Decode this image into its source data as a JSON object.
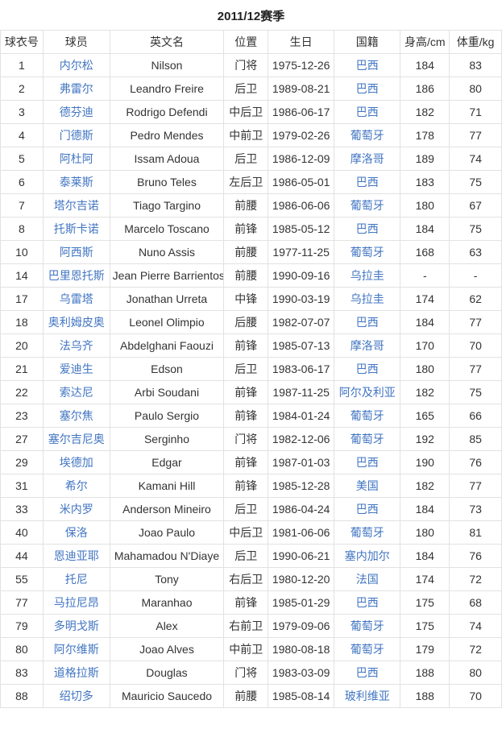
{
  "title": "2011/12赛季",
  "colors": {
    "link": "#4175c2",
    "border": "#e2e2e2",
    "text": "#333333"
  },
  "table": {
    "headers": [
      "球衣号",
      "球员",
      "英文名",
      "位置",
      "生日",
      "国籍",
      "身高/cm",
      "体重/kg"
    ],
    "rows": [
      {
        "number": "1",
        "player": "内尔松",
        "en_name": "Nilson",
        "position": "门将",
        "birthday": "1975-12-26",
        "nationality": "巴西",
        "height": "184",
        "weight": "83"
      },
      {
        "number": "2",
        "player": "弗雷尔",
        "en_name": "Leandro Freire",
        "position": "后卫",
        "birthday": "1989-08-21",
        "nationality": "巴西",
        "height": "186",
        "weight": "80"
      },
      {
        "number": "3",
        "player": "德芬迪",
        "en_name": "Rodrigo Defendi",
        "position": "中后卫",
        "birthday": "1986-06-17",
        "nationality": "巴西",
        "height": "182",
        "weight": "71"
      },
      {
        "number": "4",
        "player": "门德斯",
        "en_name": "Pedro Mendes",
        "position": "中前卫",
        "birthday": "1979-02-26",
        "nationality": "葡萄牙",
        "height": "178",
        "weight": "77"
      },
      {
        "number": "5",
        "player": "阿杜阿",
        "en_name": "Issam Adoua",
        "position": "后卫",
        "birthday": "1986-12-09",
        "nationality": "摩洛哥",
        "height": "189",
        "weight": "74"
      },
      {
        "number": "6",
        "player": "泰莱斯",
        "en_name": "Bruno Teles",
        "position": "左后卫",
        "birthday": "1986-05-01",
        "nationality": "巴西",
        "height": "183",
        "weight": "75"
      },
      {
        "number": "7",
        "player": "塔尔吉诺",
        "en_name": "Tiago Targino",
        "position": "前腰",
        "birthday": "1986-06-06",
        "nationality": "葡萄牙",
        "height": "180",
        "weight": "67"
      },
      {
        "number": "8",
        "player": "托斯卡诺",
        "en_name": "Marcelo Toscano",
        "position": "前锋",
        "birthday": "1985-05-12",
        "nationality": "巴西",
        "height": "184",
        "weight": "75"
      },
      {
        "number": "10",
        "player": "阿西斯",
        "en_name": "Nuno Assis",
        "position": "前腰",
        "birthday": "1977-11-25",
        "nationality": "葡萄牙",
        "height": "168",
        "weight": "63"
      },
      {
        "number": "14",
        "player": "巴里恩托斯",
        "en_name": "Jean Pierre Barrientos",
        "position": "前腰",
        "birthday": "1990-09-16",
        "nationality": "乌拉圭",
        "height": "-",
        "weight": "-"
      },
      {
        "number": "17",
        "player": "乌雷塔",
        "en_name": "Jonathan Urreta",
        "position": "中锋",
        "birthday": "1990-03-19",
        "nationality": "乌拉圭",
        "height": "174",
        "weight": "62"
      },
      {
        "number": "18",
        "player": "奥利姆皮奥",
        "en_name": "Leonel Olimpio",
        "position": "后腰",
        "birthday": "1982-07-07",
        "nationality": "巴西",
        "height": "184",
        "weight": "77"
      },
      {
        "number": "20",
        "player": "法乌齐",
        "en_name": "Abdelghani Faouzi",
        "position": "前锋",
        "birthday": "1985-07-13",
        "nationality": "摩洛哥",
        "height": "170",
        "weight": "70"
      },
      {
        "number": "21",
        "player": "爱迪生",
        "en_name": "Edson",
        "position": "后卫",
        "birthday": "1983-06-17",
        "nationality": "巴西",
        "height": "180",
        "weight": "77"
      },
      {
        "number": "22",
        "player": "索达尼",
        "en_name": "Arbi Soudani",
        "position": "前锋",
        "birthday": "1987-11-25",
        "nationality": "阿尔及利亚",
        "height": "182",
        "weight": "75"
      },
      {
        "number": "23",
        "player": "塞尔焦",
        "en_name": "Paulo Sergio",
        "position": "前锋",
        "birthday": "1984-01-24",
        "nationality": "葡萄牙",
        "height": "165",
        "weight": "66"
      },
      {
        "number": "27",
        "player": "塞尔吉尼奥",
        "en_name": "Serginho",
        "position": "门将",
        "birthday": "1982-12-06",
        "nationality": "葡萄牙",
        "height": "192",
        "weight": "85"
      },
      {
        "number": "29",
        "player": "埃德加",
        "en_name": "Edgar",
        "position": "前锋",
        "birthday": "1987-01-03",
        "nationality": "巴西",
        "height": "190",
        "weight": "76"
      },
      {
        "number": "31",
        "player": "希尔",
        "en_name": "Kamani Hill",
        "position": "前锋",
        "birthday": "1985-12-28",
        "nationality": "美国",
        "height": "182",
        "weight": "77"
      },
      {
        "number": "33",
        "player": "米内罗",
        "en_name": "Anderson Mineiro",
        "position": "后卫",
        "birthday": "1986-04-24",
        "nationality": "巴西",
        "height": "184",
        "weight": "73"
      },
      {
        "number": "40",
        "player": "保洛",
        "en_name": "Joao Paulo",
        "position": "中后卫",
        "birthday": "1981-06-06",
        "nationality": "葡萄牙",
        "height": "180",
        "weight": "81"
      },
      {
        "number": "44",
        "player": "恩迪亚耶",
        "en_name": "Mahamadou N'Diaye",
        "position": "后卫",
        "birthday": "1990-06-21",
        "nationality": "塞内加尔",
        "height": "184",
        "weight": "76"
      },
      {
        "number": "55",
        "player": "托尼",
        "en_name": "Tony",
        "position": "右后卫",
        "birthday": "1980-12-20",
        "nationality": "法国",
        "height": "174",
        "weight": "72"
      },
      {
        "number": "77",
        "player": "马拉尼昂",
        "en_name": "Maranhao",
        "position": "前锋",
        "birthday": "1985-01-29",
        "nationality": "巴西",
        "height": "175",
        "weight": "68"
      },
      {
        "number": "79",
        "player": "多明戈斯",
        "en_name": "Alex",
        "position": "右前卫",
        "birthday": "1979-09-06",
        "nationality": "葡萄牙",
        "height": "175",
        "weight": "74"
      },
      {
        "number": "80",
        "player": "阿尔维斯",
        "en_name": "Joao Alves",
        "position": "中前卫",
        "birthday": "1980-08-18",
        "nationality": "葡萄牙",
        "height": "179",
        "weight": "72"
      },
      {
        "number": "83",
        "player": "道格拉斯",
        "en_name": "Douglas",
        "position": "门将",
        "birthday": "1983-03-09",
        "nationality": "巴西",
        "height": "188",
        "weight": "80"
      },
      {
        "number": "88",
        "player": "绍切多",
        "en_name": "Mauricio Saucedo",
        "position": "前腰",
        "birthday": "1985-08-14",
        "nationality": "玻利维亚",
        "height": "188",
        "weight": "70"
      }
    ]
  }
}
